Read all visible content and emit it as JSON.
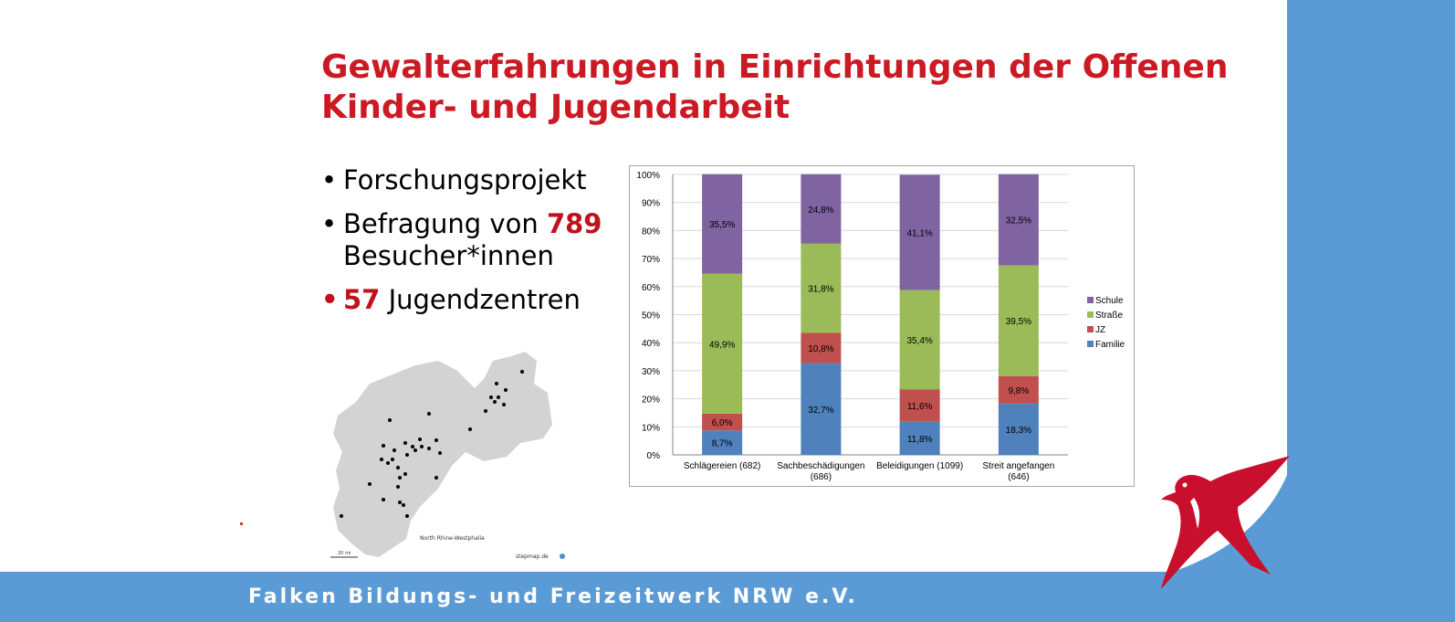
{
  "title": {
    "line1": "Gewalterfahrungen in Einrichtungen der Offenen",
    "line2": "Kinder- und Jugendarbeit"
  },
  "bullets": [
    {
      "text": "Forschungsprojekt"
    },
    {
      "pre": "Befragung von ",
      "highlight": "789",
      "post": "Besucher*innen"
    },
    {
      "highlight": "57",
      "post": " Jugendzentren"
    }
  ],
  "map": {
    "region_label": "North Rhine-Westphalia",
    "scale_label": "20 mi",
    "credit": "stepmap.de"
  },
  "footer": {
    "text": "Falken Bildungs- und Freizeitwerk NRW e.V."
  },
  "colors": {
    "title_red": "#cc1a24",
    "band_blue": "#5b9bd5",
    "bird_red": "#c8102e",
    "familie": "#4f81bd",
    "jz": "#c0504d",
    "strasse": "#9bbb59",
    "schule": "#8064a2"
  },
  "chart_data": {
    "type": "bar",
    "stacked": true,
    "categories": [
      "Schlägereien (682)",
      "Sachbeschädigungen (686)",
      "Beleidigungen (1099)",
      "Streit angefangen (646)"
    ],
    "series": [
      {
        "name": "Familie",
        "values": [
          8.7,
          32.7,
          11.8,
          18.3
        ],
        "labels": [
          "8,7%",
          "32,7%",
          "11,8%",
          "18,3%"
        ]
      },
      {
        "name": "JZ",
        "values": [
          6.0,
          10.8,
          11.6,
          9.8
        ],
        "labels": [
          "6,0%",
          "10,8%",
          "11,6%",
          "9,8%"
        ]
      },
      {
        "name": "Straße",
        "values": [
          49.9,
          31.8,
          35.4,
          39.5
        ],
        "labels": [
          "49,9%",
          "31,8%",
          "35,4%",
          "39,5%"
        ]
      },
      {
        "name": "Schule",
        "values": [
          35.5,
          24.8,
          41.1,
          32.5
        ],
        "labels": [
          "35,5%",
          "24,8%",
          "41,1%",
          "32,5%"
        ]
      }
    ],
    "yticks": [
      "0%",
      "10%",
      "20%",
      "30%",
      "40%",
      "50%",
      "60%",
      "70%",
      "80%",
      "90%",
      "100%"
    ],
    "ylim": [
      0,
      100
    ],
    "legend": [
      "Schule",
      "Straße",
      "JZ",
      "Familie"
    ],
    "legend_position": "right",
    "grid": true
  }
}
